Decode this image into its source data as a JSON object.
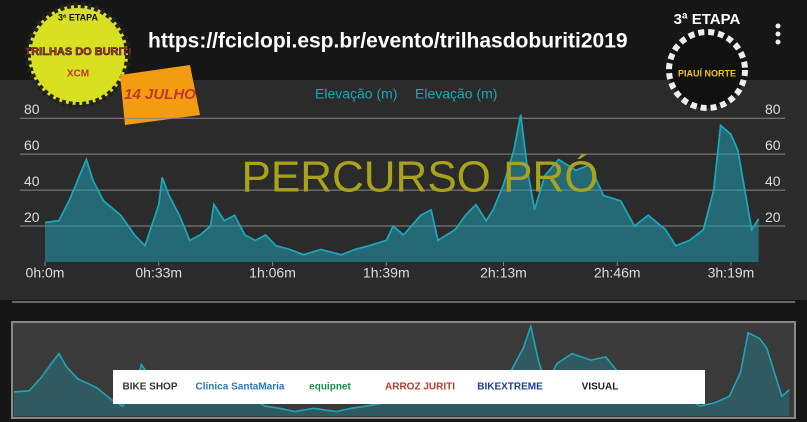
{
  "header": {
    "url": "https://fciclopi.esp.br/evento/trilhasdoburiti2019"
  },
  "logos": {
    "left": {
      "stage": "3ª ETAPA",
      "name": "TRILHAS DO BURITI",
      "sub": "XCM",
      "date": "14 JULHO"
    },
    "right": {
      "stage": "3ª ETAPA",
      "name": "PIAUÍ NORTE"
    }
  },
  "sponsors": [
    "BIKE SHOP",
    "Clínica SantaMaria",
    "equipnet",
    "ARROZ JURITI",
    "BIKEXTREME",
    "VISUAL"
  ],
  "chart_data": {
    "type": "area",
    "overlay_title": "PERCURSO PRÓ",
    "x": [
      0,
      4,
      7,
      10,
      12,
      14,
      17,
      22,
      26,
      29,
      33,
      34,
      36,
      39,
      42,
      45,
      48,
      49,
      52,
      55,
      58,
      61,
      64,
      67,
      71,
      75,
      80,
      86,
      90,
      94,
      99,
      101,
      104,
      109,
      112,
      114,
      119,
      122,
      125,
      128,
      130,
      133,
      136,
      138,
      140,
      142,
      145,
      149,
      154,
      158,
      162,
      167,
      171,
      175,
      180,
      183,
      187,
      191,
      194,
      196,
      199,
      201,
      203,
      205,
      207
    ],
    "xlim": [
      0,
      208
    ],
    "xticks": [
      {
        "value": 0,
        "label": "0h:0m"
      },
      {
        "value": 33,
        "label": "0h:33m"
      },
      {
        "value": 66,
        "label": "1h:06m"
      },
      {
        "value": 99,
        "label": "1h:39m"
      },
      {
        "value": 133,
        "label": "2h:13m"
      },
      {
        "value": 166,
        "label": "2h:46m"
      },
      {
        "value": 199,
        "label": "3h:19m"
      }
    ],
    "ylim": [
      0,
      84
    ],
    "yticks": [
      20,
      40,
      60,
      80
    ],
    "y2lim": [
      0,
      84
    ],
    "y2ticks": [
      20,
      40,
      60,
      80
    ],
    "grid": true,
    "series": [
      {
        "name": "Elevação (m)",
        "color": "#1ea5b8",
        "values": [
          22,
          23,
          34,
          48,
          57,
          45,
          34,
          26,
          15,
          9,
          32,
          47,
          37,
          26,
          12,
          15,
          20,
          32,
          23,
          26,
          15,
          12,
          15,
          9,
          7,
          4,
          7,
          4,
          7,
          9,
          12,
          20,
          15,
          26,
          29,
          12,
          18,
          26,
          32,
          23,
          29,
          43,
          62,
          82,
          51,
          29,
          48,
          57,
          51,
          54,
          37,
          34,
          20,
          26,
          18,
          9,
          12,
          18,
          40,
          76,
          71,
          62,
          40,
          18,
          24
        ]
      },
      {
        "name": "Elevação (m)",
        "color": "#1ea5b8",
        "values": [
          22,
          23,
          34,
          48,
          57,
          45,
          34,
          26,
          15,
          9,
          32,
          47,
          37,
          26,
          12,
          15,
          20,
          32,
          23,
          26,
          15,
          12,
          15,
          9,
          7,
          4,
          7,
          4,
          7,
          9,
          12,
          20,
          15,
          26,
          29,
          12,
          18,
          26,
          32,
          23,
          29,
          43,
          62,
          82,
          51,
          29,
          48,
          57,
          51,
          54,
          37,
          34,
          20,
          26,
          18,
          9,
          12,
          18,
          40,
          76,
          71,
          62,
          40,
          18,
          24
        ]
      }
    ]
  }
}
